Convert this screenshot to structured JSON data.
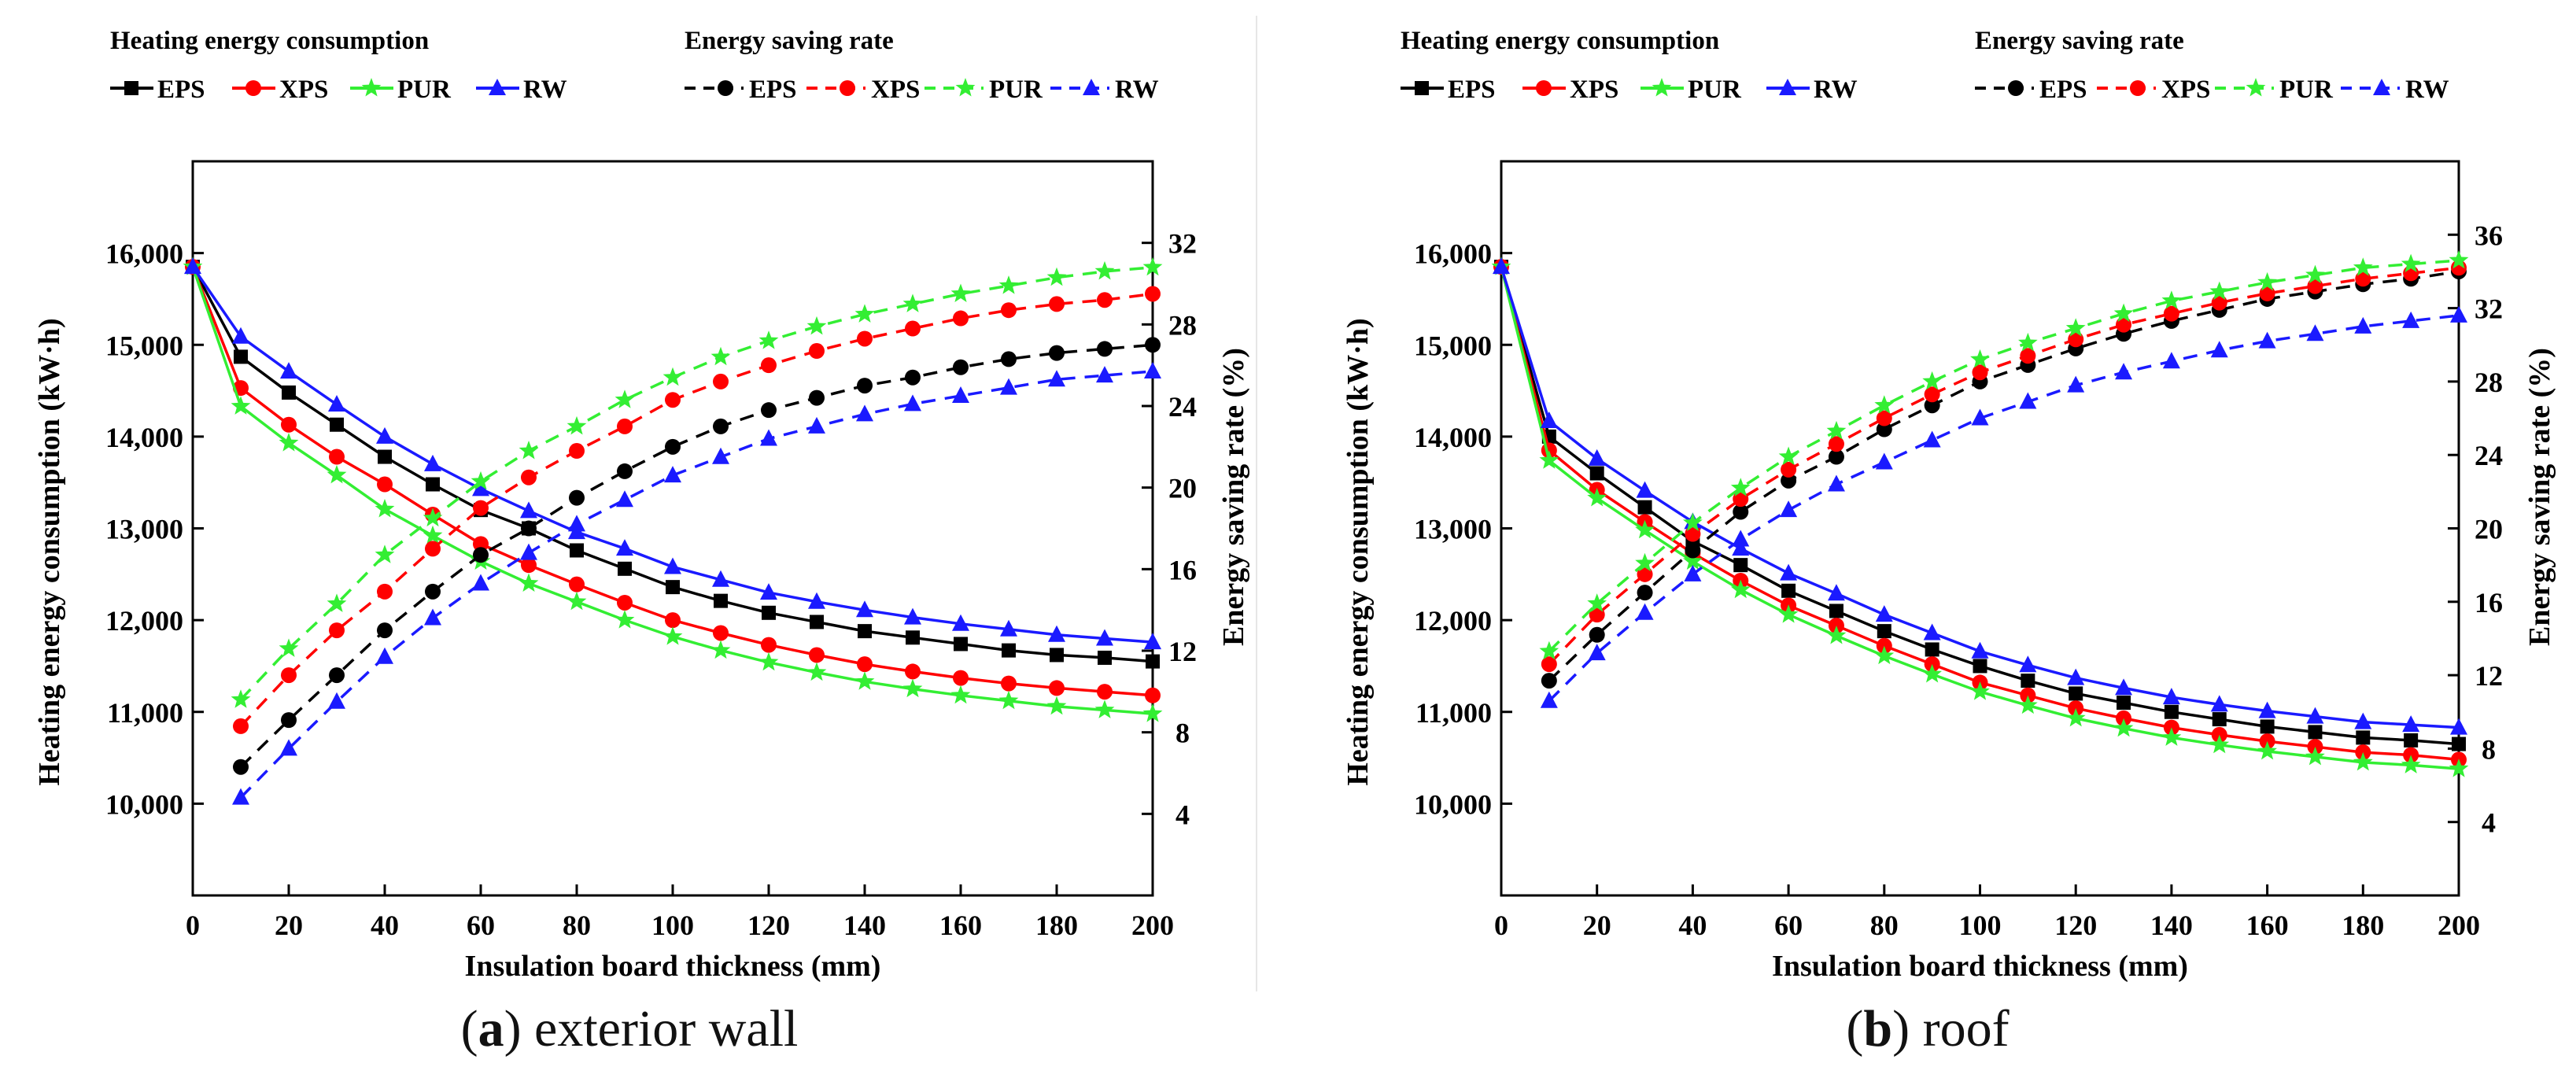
{
  "figure": {
    "captions": [
      {
        "letter": "a",
        "open": "(",
        "close": ")",
        "text": " exterior wall"
      },
      {
        "letter": "b",
        "open": "(",
        "close": ")",
        "text": " roof"
      }
    ]
  },
  "chart_data": [
    {
      "id": "a",
      "type": "line",
      "title": "(a) exterior wall",
      "xlabel": "Insulation board thickness (mm)",
      "ylabel_left": "Heating energy consumption (kW·h)",
      "ylabel_right": "Energy saving rate (%)",
      "xlim": [
        0,
        200
      ],
      "ylim_left": [
        9000,
        17000
      ],
      "ylim_right": [
        0,
        36
      ],
      "x_ticks": [
        0,
        20,
        40,
        60,
        80,
        100,
        120,
        140,
        160,
        180,
        200
      ],
      "y_left_ticks": [
        10000,
        11000,
        12000,
        13000,
        14000,
        15000,
        16000
      ],
      "y_left_tick_labels": [
        "10,000",
        "11,000",
        "12,000",
        "13,000",
        "14,000",
        "15,000",
        "16,000"
      ],
      "y_right_ticks": [
        4,
        8,
        12,
        16,
        20,
        24,
        28,
        32
      ],
      "legend_groups": [
        "Heating energy consumption",
        "Energy saving rate"
      ],
      "colors": {
        "EPS": "#000000",
        "XPS": "#ff0000",
        "PUR": "#33ee33",
        "RW": "#1a1aff"
      },
      "x": [
        0,
        10,
        20,
        30,
        40,
        50,
        60,
        70,
        80,
        90,
        100,
        110,
        120,
        130,
        140,
        150,
        160,
        170,
        180,
        190,
        200
      ],
      "consumption": [
        {
          "name": "EPS",
          "values": [
            15850,
            14870,
            14480,
            14130,
            13780,
            13480,
            13200,
            13000,
            12760,
            12560,
            12360,
            12210,
            12080,
            11980,
            11880,
            11810,
            11740,
            11670,
            11620,
            11590,
            11550
          ]
        },
        {
          "name": "XPS",
          "values": [
            15850,
            14530,
            14130,
            13780,
            13480,
            13150,
            12830,
            12600,
            12390,
            12190,
            12000,
            11860,
            11730,
            11620,
            11520,
            11440,
            11370,
            11310,
            11260,
            11220,
            11180
          ]
        },
        {
          "name": "PUR",
          "values": [
            15850,
            14330,
            13930,
            13580,
            13210,
            12920,
            12640,
            12400,
            12200,
            12000,
            11820,
            11670,
            11540,
            11430,
            11330,
            11250,
            11180,
            11120,
            11060,
            11020,
            10980
          ]
        },
        {
          "name": "RW",
          "values": [
            15850,
            15090,
            14710,
            14350,
            14000,
            13700,
            13430,
            13190,
            12960,
            12780,
            12580,
            12440,
            12300,
            12200,
            12110,
            12030,
            11960,
            11900,
            11840,
            11800,
            11760
          ]
        }
      ],
      "saving_rate": [
        {
          "name": "EPS",
          "values": [
            null,
            6.3,
            8.6,
            10.8,
            13.0,
            14.9,
            16.7,
            18.0,
            19.5,
            20.8,
            22.0,
            23.0,
            23.8,
            24.4,
            25.0,
            25.4,
            25.9,
            26.3,
            26.6,
            26.8,
            27.0
          ]
        },
        {
          "name": "XPS",
          "values": [
            null,
            8.3,
            10.8,
            13.0,
            14.9,
            17.0,
            19.0,
            20.5,
            21.8,
            23.0,
            24.3,
            25.2,
            26.0,
            26.7,
            27.3,
            27.8,
            28.3,
            28.7,
            29.0,
            29.2,
            29.5
          ]
        },
        {
          "name": "PUR",
          "values": [
            null,
            9.6,
            12.1,
            14.3,
            16.7,
            18.5,
            20.3,
            21.8,
            23.0,
            24.3,
            25.4,
            26.4,
            27.2,
            27.9,
            28.5,
            29.0,
            29.5,
            29.9,
            30.3,
            30.6,
            30.8
          ]
        },
        {
          "name": "RW",
          "values": [
            null,
            4.8,
            7.2,
            9.5,
            11.7,
            13.6,
            15.3,
            16.8,
            18.2,
            19.4,
            20.6,
            21.5,
            22.4,
            23.0,
            23.6,
            24.1,
            24.5,
            24.9,
            25.3,
            25.5,
            25.7
          ]
        }
      ]
    },
    {
      "id": "b",
      "type": "line",
      "title": "(b) roof",
      "xlabel": "Insulation board thickness (mm)",
      "ylabel_left": "Heating energy consumption (kW·h)",
      "ylabel_right": "Energy saving rate (%)",
      "xlim": [
        0,
        200
      ],
      "ylim_left": [
        9000,
        17000
      ],
      "ylim_right": [
        0,
        40
      ],
      "x_ticks": [
        0,
        20,
        40,
        60,
        80,
        100,
        120,
        140,
        160,
        180,
        200
      ],
      "y_left_ticks": [
        10000,
        11000,
        12000,
        13000,
        14000,
        15000,
        16000
      ],
      "y_left_tick_labels": [
        "10,000",
        "11,000",
        "12,000",
        "13,000",
        "14,000",
        "15,000",
        "16,000"
      ],
      "y_right_ticks": [
        4,
        8,
        12,
        16,
        20,
        24,
        28,
        32,
        36
      ],
      "legend_groups": [
        "Heating energy consumption",
        "Energy saving rate"
      ],
      "colors": {
        "EPS": "#000000",
        "XPS": "#ff0000",
        "PUR": "#33ee33",
        "RW": "#1a1aff"
      },
      "x": [
        0,
        10,
        20,
        30,
        40,
        50,
        60,
        70,
        80,
        90,
        100,
        110,
        120,
        130,
        140,
        150,
        160,
        170,
        180,
        190,
        200
      ],
      "consumption": [
        {
          "name": "EPS",
          "values": [
            15850,
            14000,
            13600,
            13230,
            12860,
            12600,
            12320,
            12100,
            11880,
            11680,
            11500,
            11340,
            11200,
            11100,
            11000,
            10920,
            10840,
            10780,
            10720,
            10690,
            10650
          ]
        },
        {
          "name": "XPS",
          "values": [
            15850,
            13850,
            13420,
            13070,
            12730,
            12430,
            12160,
            11940,
            11720,
            11520,
            11320,
            11180,
            11040,
            10930,
            10830,
            10750,
            10680,
            10620,
            10560,
            10530,
            10480
          ]
        },
        {
          "name": "PUR",
          "values": [
            15850,
            13740,
            13330,
            12980,
            12640,
            12330,
            12060,
            11830,
            11610,
            11410,
            11220,
            11070,
            10930,
            10820,
            10720,
            10640,
            10570,
            10510,
            10450,
            10420,
            10380
          ]
        },
        {
          "name": "RW",
          "values": [
            15850,
            14170,
            13760,
            13410,
            13070,
            12780,
            12510,
            12290,
            12060,
            11860,
            11660,
            11510,
            11370,
            11260,
            11160,
            11080,
            11010,
            10950,
            10890,
            10860,
            10830
          ]
        }
      ],
      "saving_rate": [
        {
          "name": "EPS",
          "values": [
            null,
            11.7,
            14.2,
            16.5,
            18.8,
            20.9,
            22.6,
            23.9,
            25.4,
            26.7,
            28.0,
            28.9,
            29.8,
            30.6,
            31.3,
            31.9,
            32.5,
            32.9,
            33.3,
            33.6,
            34.0
          ]
        },
        {
          "name": "XPS",
          "values": [
            null,
            12.6,
            15.3,
            17.5,
            19.7,
            21.6,
            23.2,
            24.6,
            26.0,
            27.3,
            28.5,
            29.4,
            30.3,
            31.1,
            31.7,
            32.3,
            32.8,
            33.2,
            33.6,
            33.9,
            34.2
          ]
        },
        {
          "name": "PUR",
          "values": [
            null,
            13.3,
            15.9,
            18.1,
            20.3,
            22.2,
            23.9,
            25.3,
            26.7,
            28.0,
            29.2,
            30.1,
            30.9,
            31.7,
            32.4,
            32.9,
            33.4,
            33.8,
            34.2,
            34.4,
            34.6
          ]
        },
        {
          "name": "RW",
          "values": [
            null,
            10.6,
            13.2,
            15.4,
            17.5,
            19.4,
            21.0,
            22.4,
            23.6,
            24.8,
            26.0,
            26.9,
            27.8,
            28.5,
            29.1,
            29.7,
            30.2,
            30.6,
            31.0,
            31.3,
            31.6
          ]
        }
      ]
    }
  ]
}
